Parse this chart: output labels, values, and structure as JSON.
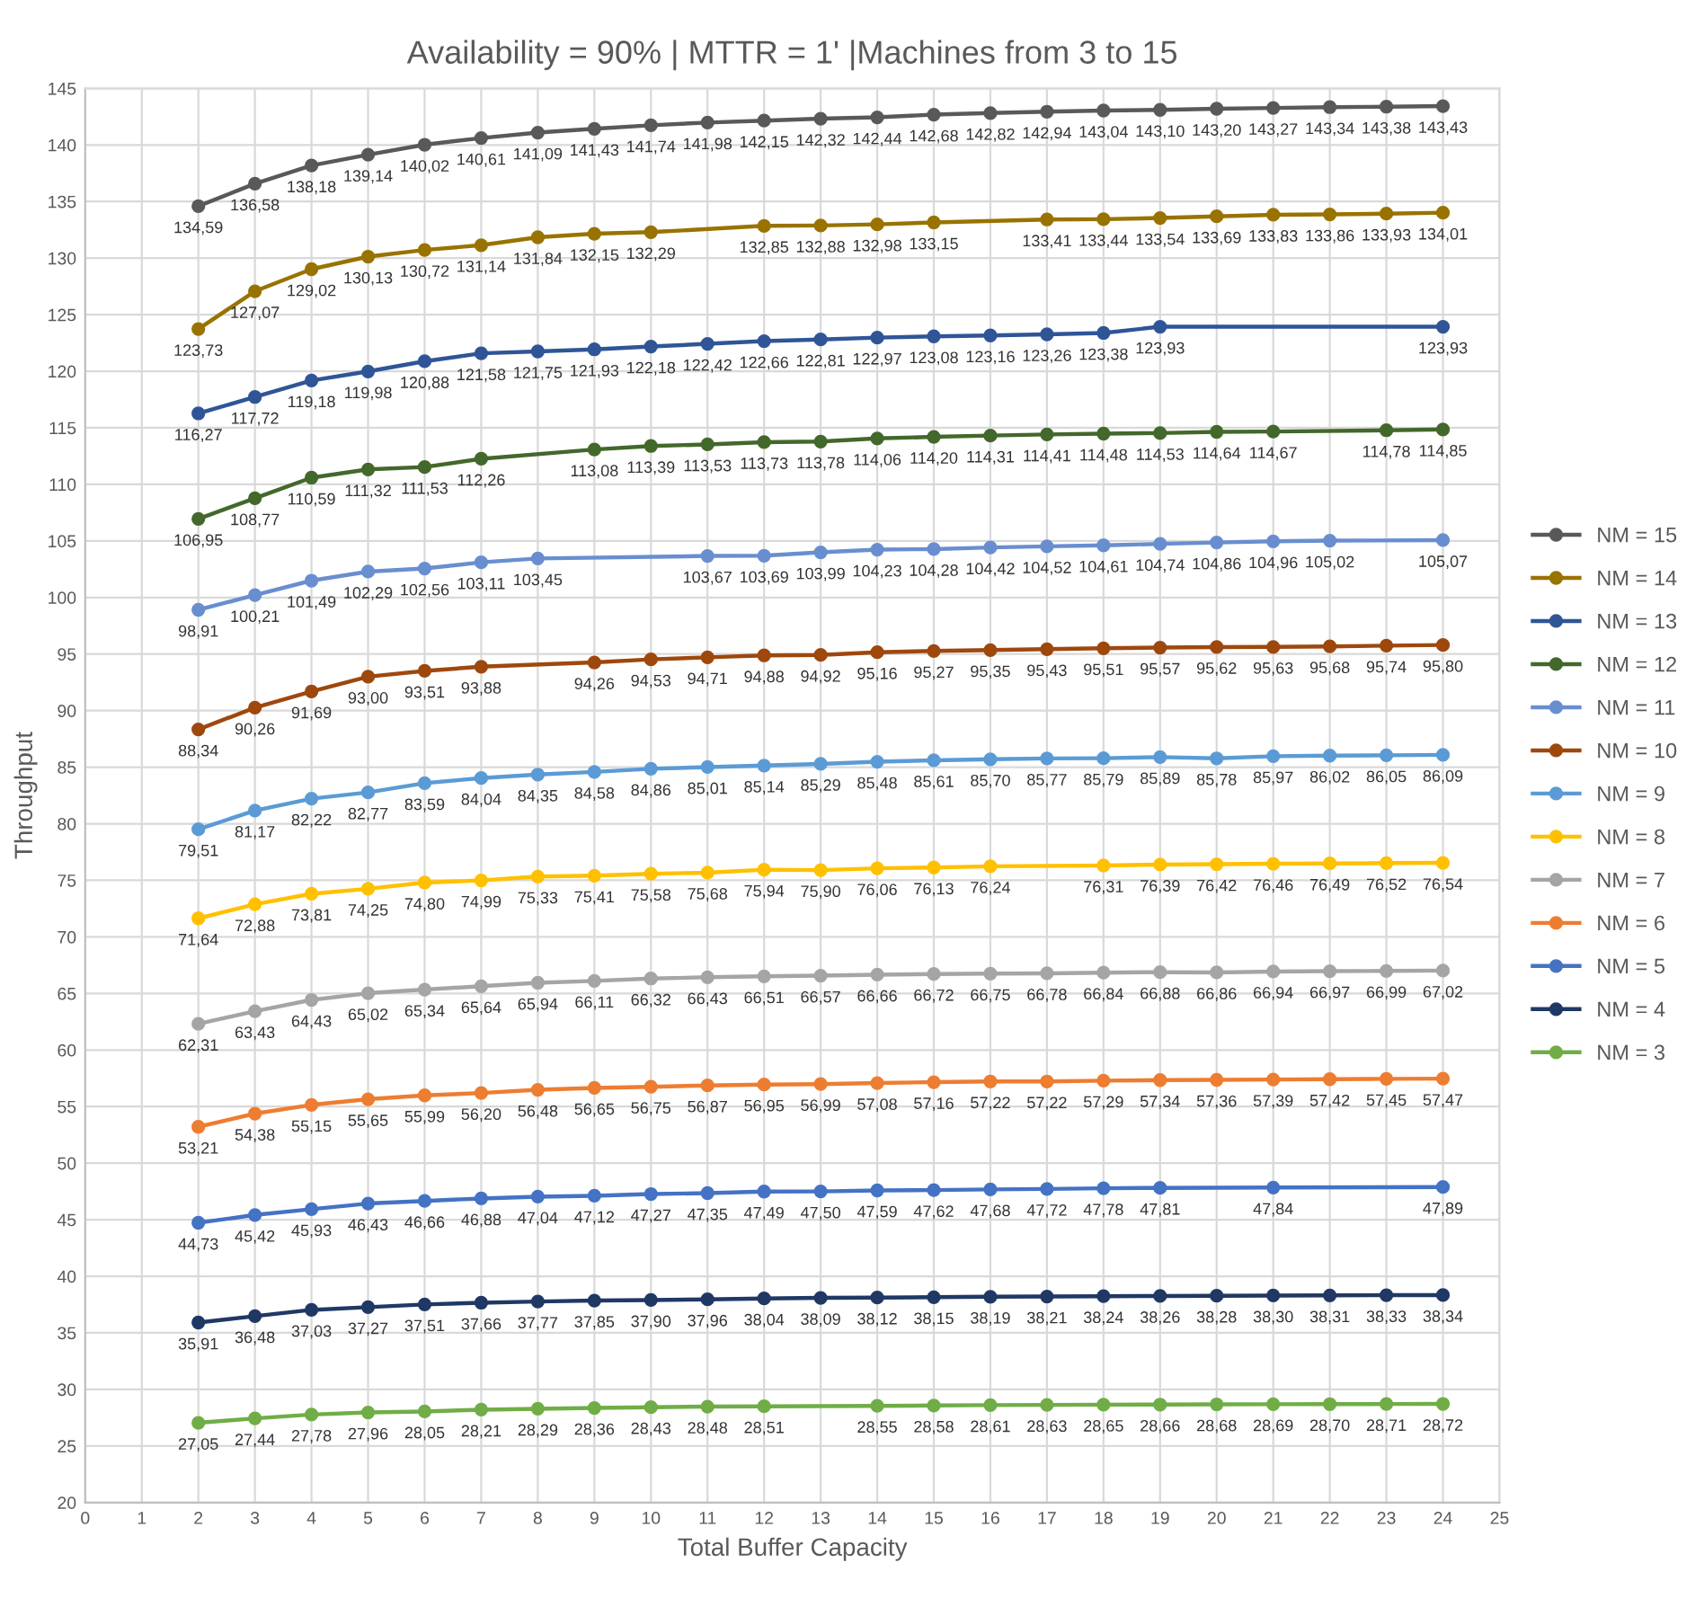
{
  "chart_data": {
    "type": "line",
    "title": "Availability = 90% | MTTR = 1' |Machines from 3 to 15",
    "xlabel": "Total Buffer Capacity",
    "ylabel": "Throughput",
    "xlim": [
      0,
      25
    ],
    "xticks": [
      0,
      1,
      2,
      3,
      4,
      5,
      6,
      7,
      8,
      9,
      10,
      11,
      12,
      13,
      14,
      15,
      16,
      17,
      18,
      19,
      20,
      21,
      22,
      23,
      24,
      25
    ],
    "ylim": [
      20,
      145
    ],
    "yticks": [
      20,
      25,
      30,
      35,
      40,
      45,
      50,
      55,
      60,
      65,
      70,
      75,
      80,
      85,
      90,
      95,
      100,
      105,
      110,
      115,
      120,
      125,
      130,
      135,
      140,
      145
    ],
    "grid": true,
    "legend": "right",
    "marker": "circle",
    "line_style": "solid",
    "series": [
      {
        "name": "NM = 15",
        "color": "#595959",
        "x": [
          2,
          3,
          4,
          5,
          6,
          7,
          8,
          9,
          10,
          11,
          12,
          13,
          14,
          15,
          16,
          17,
          18,
          19,
          20,
          21,
          22,
          23,
          24
        ],
        "values": [
          134.59,
          136.58,
          138.18,
          139.14,
          140.02,
          140.61,
          141.09,
          141.43,
          141.74,
          141.98,
          142.15,
          142.32,
          142.44,
          142.68,
          142.82,
          142.94,
          143.04,
          143.1,
          143.2,
          143.27,
          143.34,
          143.38,
          143.43
        ],
        "value_labels": [
          "134,59",
          "136,58",
          "138,18",
          "139,14",
          "140,02",
          "140,61",
          "141,09",
          "141,43",
          "141,74",
          "141,98",
          "142,15",
          "142,32",
          "142,44",
          "142,68",
          "142,82",
          "142,94",
          "143,04",
          "143,10",
          "143,20",
          "143,27",
          "143,34",
          "143,38",
          "143,43"
        ]
      },
      {
        "name": "NM = 14",
        "color": "#997300",
        "x": [
          2,
          3,
          4,
          5,
          6,
          7,
          8,
          9,
          10,
          12,
          13,
          14,
          15,
          17,
          18,
          19,
          20,
          21,
          22,
          23,
          24
        ],
        "values": [
          123.73,
          127.07,
          129.02,
          130.13,
          130.72,
          131.14,
          131.84,
          132.15,
          132.29,
          132.85,
          132.88,
          132.98,
          133.15,
          133.41,
          133.44,
          133.54,
          133.69,
          133.83,
          133.86,
          133.93,
          134.01
        ],
        "value_labels": [
          "123,73",
          "127,07",
          "129,02",
          "130,13",
          "130,72",
          "131,14",
          "131,84",
          "132,15",
          "132,29",
          "132,85",
          "132,88",
          "132,98",
          "133,15",
          "133,41",
          "133,44",
          "133,54",
          "133,69",
          "133,83",
          "133,86",
          "133,93",
          "134,01"
        ]
      },
      {
        "name": "NM = 13",
        "color": "#2f5597",
        "x": [
          2,
          3,
          4,
          5,
          6,
          7,
          8,
          9,
          10,
          11,
          12,
          13,
          14,
          15,
          16,
          17,
          18,
          19,
          24
        ],
        "values": [
          116.27,
          117.72,
          119.18,
          119.98,
          120.88,
          121.58,
          121.75,
          121.93,
          122.18,
          122.42,
          122.66,
          122.81,
          122.97,
          123.08,
          123.16,
          123.26,
          123.38,
          123.93,
          123.93
        ],
        "value_labels": [
          "116,27",
          "117,72",
          "119,18",
          "119,98",
          "120,88",
          "121,58",
          "121,75",
          "121,93",
          "122,18",
          "122,42",
          "122,66",
          "122,81",
          "122,97",
          "123,08",
          "123,16",
          "123,26",
          "123,38",
          "123,93",
          "123,93"
        ]
      },
      {
        "name": "NM = 12",
        "color": "#43682b",
        "x": [
          2,
          3,
          4,
          5,
          6,
          7,
          9,
          10,
          11,
          12,
          13,
          14,
          15,
          16,
          17,
          18,
          19,
          20,
          21,
          23,
          24
        ],
        "values": [
          106.95,
          108.77,
          110.59,
          111.32,
          111.53,
          112.26,
          113.08,
          113.39,
          113.53,
          113.73,
          113.78,
          114.06,
          114.2,
          114.31,
          114.41,
          114.48,
          114.53,
          114.64,
          114.67,
          114.78,
          114.85
        ],
        "value_labels": [
          "106,95",
          "108,77",
          "110,59",
          "111,32",
          "111,53",
          "112,26",
          "113,08",
          "113,39",
          "113,53",
          "113,73",
          "113,78",
          "114,06",
          "114,20",
          "114,31",
          "114,41",
          "114,48",
          "114,53",
          "114,64",
          "114,67",
          "114,78",
          "114,85"
        ]
      },
      {
        "name": "NM = 11",
        "color": "#698ed0",
        "x": [
          2,
          3,
          4,
          5,
          6,
          7,
          8,
          11,
          12,
          13,
          14,
          15,
          16,
          17,
          18,
          19,
          20,
          21,
          22,
          24
        ],
        "values": [
          98.91,
          100.21,
          101.49,
          102.29,
          102.56,
          103.11,
          103.45,
          103.67,
          103.69,
          103.99,
          104.23,
          104.28,
          104.42,
          104.52,
          104.61,
          104.74,
          104.86,
          104.96,
          105.02,
          105.07
        ],
        "value_labels": [
          "98,91",
          "100,21",
          "101,49",
          "102,29",
          "102,56",
          "103,11",
          "103,45",
          "103,67",
          "103,69",
          "103,99",
          "104,23",
          "104,28",
          "104,42",
          "104,52",
          "104,61",
          "104,74",
          "104,86",
          "104,96",
          "105,02",
          "105,07"
        ]
      },
      {
        "name": "NM = 10",
        "color": "#9e480e",
        "x": [
          2,
          3,
          4,
          5,
          6,
          7,
          9,
          10,
          11,
          12,
          13,
          14,
          15,
          16,
          17,
          18,
          19,
          20,
          21,
          22,
          23,
          24
        ],
        "values": [
          88.34,
          90.26,
          91.69,
          93.0,
          93.51,
          93.88,
          94.26,
          94.53,
          94.71,
          94.88,
          94.92,
          95.16,
          95.27,
          95.35,
          95.43,
          95.51,
          95.57,
          95.62,
          95.63,
          95.68,
          95.74,
          95.8
        ],
        "value_labels": [
          "88,34",
          "90,26",
          "91,69",
          "93,00",
          "93,51",
          "93,88",
          "94,26",
          "94,53",
          "94,71",
          "94,88",
          "94,92",
          "95,16",
          "95,27",
          "95,35",
          "95,43",
          "95,51",
          "95,57",
          "95,62",
          "95,63",
          "95,68",
          "95,74",
          "95,80"
        ]
      },
      {
        "name": "NM = 9",
        "color": "#5b9bd5",
        "x": [
          2,
          3,
          4,
          5,
          6,
          7,
          8,
          9,
          10,
          11,
          12,
          13,
          14,
          15,
          16,
          17,
          18,
          19,
          20,
          21,
          22,
          23,
          24
        ],
        "values": [
          79.51,
          81.17,
          82.22,
          82.77,
          83.59,
          84.04,
          84.35,
          84.58,
          84.86,
          85.01,
          85.14,
          85.29,
          85.48,
          85.61,
          85.7,
          85.77,
          85.79,
          85.89,
          85.78,
          85.97,
          86.02,
          86.05,
          86.09
        ],
        "value_labels": [
          "79,51",
          "81,17",
          "82,22",
          "82,77",
          "83,59",
          "84,04",
          "84,35",
          "84,58",
          "84,86",
          "85,01",
          "85,14",
          "85,29",
          "85,48",
          "85,61",
          "85,70",
          "85,77",
          "85,79",
          "85,89",
          "85,78",
          "85,97",
          "86,02",
          "86,05",
          "86,09"
        ]
      },
      {
        "name": "NM = 8",
        "color": "#ffc000",
        "x": [
          2,
          3,
          4,
          5,
          6,
          7,
          8,
          9,
          10,
          11,
          12,
          13,
          14,
          15,
          16,
          18,
          19,
          20,
          21,
          22,
          23,
          24
        ],
        "values": [
          71.64,
          72.88,
          73.81,
          74.25,
          74.8,
          74.99,
          75.33,
          75.41,
          75.58,
          75.68,
          75.94,
          75.9,
          76.06,
          76.13,
          76.24,
          76.31,
          76.39,
          76.42,
          76.46,
          76.49,
          76.52,
          76.54
        ],
        "value_labels": [
          "71,64",
          "72,88",
          "73,81",
          "74,25",
          "74,80",
          "74,99",
          "75,33",
          "75,41",
          "75,58",
          "75,68",
          "75,94",
          "75,90",
          "76,06",
          "76,13",
          "76,24",
          "76,31",
          "76,39",
          "76,42",
          "76,46",
          "76,49",
          "76,52",
          "76,54"
        ]
      },
      {
        "name": "NM = 7",
        "color": "#a5a5a5",
        "x": [
          2,
          3,
          4,
          5,
          6,
          7,
          8,
          9,
          10,
          11,
          12,
          13,
          14,
          15,
          16,
          17,
          18,
          19,
          20,
          21,
          22,
          23,
          24
        ],
        "values": [
          62.31,
          63.43,
          64.43,
          65.02,
          65.34,
          65.64,
          65.94,
          66.11,
          66.32,
          66.43,
          66.51,
          66.57,
          66.66,
          66.72,
          66.75,
          66.78,
          66.84,
          66.88,
          66.86,
          66.94,
          66.97,
          66.99,
          67.02
        ],
        "value_labels": [
          "62,31",
          "63,43",
          "64,43",
          "65,02",
          "65,34",
          "65,64",
          "65,94",
          "66,11",
          "66,32",
          "66,43",
          "66,51",
          "66,57",
          "66,66",
          "66,72",
          "66,75",
          "66,78",
          "66,84",
          "66,88",
          "66,86",
          "66,94",
          "66,97",
          "66,99",
          "67,02"
        ]
      },
      {
        "name": "NM = 6",
        "color": "#ed7d31",
        "x": [
          2,
          3,
          4,
          5,
          6,
          7,
          8,
          9,
          10,
          11,
          12,
          13,
          14,
          15,
          16,
          17,
          18,
          19,
          20,
          21,
          22,
          23,
          24
        ],
        "values": [
          53.21,
          54.38,
          55.15,
          55.65,
          55.99,
          56.2,
          56.48,
          56.65,
          56.75,
          56.87,
          56.95,
          56.99,
          57.08,
          57.16,
          57.22,
          57.22,
          57.29,
          57.34,
          57.36,
          57.39,
          57.42,
          57.45,
          57.47
        ],
        "value_labels": [
          "53,21",
          "54,38",
          "55,15",
          "55,65",
          "55,99",
          "56,20",
          "56,48",
          "56,65",
          "56,75",
          "56,87",
          "56,95",
          "56,99",
          "57,08",
          "57,16",
          "57,22",
          "57,22",
          "57,29",
          "57,34",
          "57,36",
          "57,39",
          "57,42",
          "57,45",
          "57,47"
        ]
      },
      {
        "name": "NM = 5",
        "color": "#4472c4",
        "x": [
          2,
          3,
          4,
          5,
          6,
          7,
          8,
          9,
          10,
          11,
          12,
          13,
          14,
          15,
          16,
          17,
          18,
          19,
          21,
          24
        ],
        "values": [
          44.73,
          45.42,
          45.93,
          46.43,
          46.66,
          46.88,
          47.04,
          47.12,
          47.27,
          47.35,
          47.49,
          47.5,
          47.59,
          47.62,
          47.68,
          47.72,
          47.78,
          47.81,
          47.84,
          47.89
        ],
        "value_labels": [
          "44,73",
          "45,42",
          "45,93",
          "46,43",
          "46,66",
          "46,88",
          "47,04",
          "47,12",
          "47,27",
          "47,35",
          "47,49",
          "47,50",
          "47,59",
          "47,62",
          "47,68",
          "47,72",
          "47,78",
          "47,81",
          "47,84",
          "47,89"
        ]
      },
      {
        "name": "NM = 4",
        "color": "#203864",
        "x": [
          2,
          3,
          4,
          5,
          6,
          7,
          8,
          9,
          10,
          11,
          12,
          13,
          14,
          15,
          16,
          17,
          18,
          19,
          20,
          21,
          22,
          23,
          24
        ],
        "values": [
          35.91,
          36.48,
          37.03,
          37.27,
          37.51,
          37.66,
          37.77,
          37.85,
          37.9,
          37.96,
          38.04,
          38.09,
          38.12,
          38.15,
          38.19,
          38.21,
          38.24,
          38.26,
          38.28,
          38.3,
          38.31,
          38.33,
          38.34
        ],
        "value_labels": [
          "35,91",
          "36,48",
          "37,03",
          "37,27",
          "37,51",
          "37,66",
          "37,77",
          "37,85",
          "37,90",
          "37,96",
          "38,04",
          "38,09",
          "38,12",
          "38,15",
          "38,19",
          "38,21",
          "38,24",
          "38,26",
          "38,28",
          "38,30",
          "38,31",
          "38,33",
          "38,34"
        ]
      },
      {
        "name": "NM = 3",
        "color": "#70ad47",
        "x": [
          2,
          3,
          4,
          5,
          6,
          7,
          8,
          9,
          10,
          11,
          12,
          14,
          15,
          16,
          17,
          18,
          19,
          20,
          21,
          22,
          23,
          24
        ],
        "values": [
          27.05,
          27.44,
          27.78,
          27.96,
          28.05,
          28.21,
          28.29,
          28.36,
          28.43,
          28.48,
          28.51,
          28.55,
          28.58,
          28.61,
          28.63,
          28.65,
          28.66,
          28.68,
          28.69,
          28.7,
          28.71,
          28.72
        ],
        "value_labels": [
          "27,05",
          "27,44",
          "27,78",
          "27,96",
          "28,05",
          "28,21",
          "28,29",
          "28,36",
          "28,43",
          "28,48",
          "28,51",
          "28,55",
          "28,58",
          "28,61",
          "28,63",
          "28,65",
          "28,66",
          "28,68",
          "28,69",
          "28,70",
          "28,71",
          "28,72"
        ]
      }
    ]
  }
}
